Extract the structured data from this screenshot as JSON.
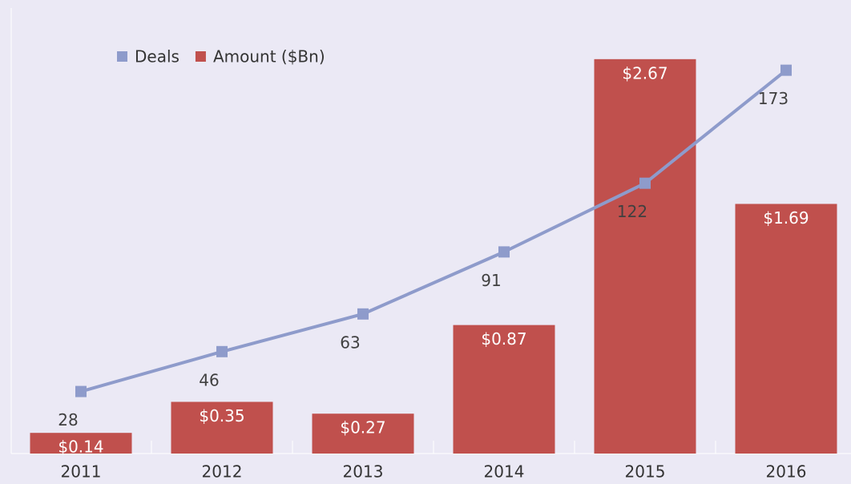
{
  "chart_data": {
    "type": "combo",
    "categories": [
      "2011",
      "2012",
      "2013",
      "2014",
      "2015",
      "2016"
    ],
    "series": [
      {
        "name": "Deals",
        "type": "line",
        "axis": "y2",
        "color": "#8e9bcb",
        "values": [
          28,
          46,
          63,
          91,
          122,
          173
        ]
      },
      {
        "name": "Amount ($Bn)",
        "type": "bar",
        "color": "#c0504d",
        "values": [
          0.14,
          0.35,
          0.27,
          0.87,
          2.67,
          1.69
        ],
        "value_labels": [
          "$0.14",
          "$0.35",
          "$0.27",
          "$0.87",
          "$2.67",
          "$1.69"
        ]
      }
    ],
    "ylim": [
      0,
      3
    ],
    "y2lim": [
      0,
      200
    ],
    "legend": "upper left"
  }
}
